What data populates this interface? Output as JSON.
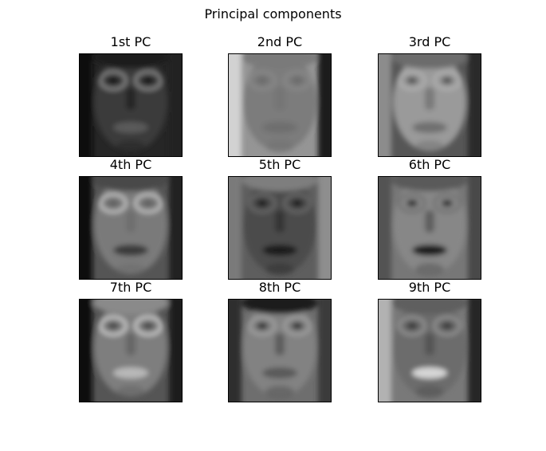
{
  "figure": {
    "title": "Principal components"
  },
  "panels": [
    {
      "title": "1st PC",
      "image": "eigenface-1",
      "skin": "#3a3a3a",
      "bg": "#262626",
      "feature": "#151515",
      "hair": "#1c1c1c",
      "glasses": "#8a8a8a",
      "mouth": "#5a5a5a",
      "left_edge": "#0d0d0d",
      "right_edge": "#202020"
    },
    {
      "title": "2nd PC",
      "image": "eigenface-2",
      "skin": "#7c7c7c",
      "bg": "#959595",
      "feature": "#6a6a6a",
      "hair": "#7a7a7a",
      "glasses": "#8a8a8a",
      "mouth": "#6e6e6e",
      "left_edge": "#d2d2d2",
      "right_edge": "#1a1a1a"
    },
    {
      "title": "3rd PC",
      "image": "eigenface-3",
      "skin": "#9a9a9a",
      "bg": "#565656",
      "feature": "#525252",
      "hair": "#6c6c6c",
      "glasses": "#b2b2b2",
      "mouth": "#707070",
      "left_edge": "#8c8c8c",
      "right_edge": "#2a2a2a"
    },
    {
      "title": "4th PC",
      "image": "eigenface-4",
      "skin": "#7a7a7a",
      "bg": "#555555",
      "feature": "#606060",
      "hair": "#4a4a4a",
      "glasses": "#c8c8c8",
      "mouth": "#3a3a3a",
      "left_edge": "#111111",
      "right_edge": "#222222"
    },
    {
      "title": "5th PC",
      "image": "eigenface-5",
      "skin": "#4c4c4c",
      "bg": "#5e5e5e",
      "feature": "#1c1c1c",
      "hair": "#7e7e7e",
      "glasses": "#6a6a6a",
      "mouth": "#1a1a1a",
      "left_edge": "#7a7a7a",
      "right_edge": "#8e8e8e"
    },
    {
      "title": "6th PC",
      "image": "eigenface-6",
      "skin": "#878787",
      "bg": "#777777",
      "feature": "#2e2e2e",
      "hair": "#5a5a5a",
      "glasses": "#6e6e6e",
      "mouth": "#1f1f1f",
      "left_edge": "#525252",
      "right_edge": "#484848"
    },
    {
      "title": "7th PC",
      "image": "eigenface-7",
      "skin": "#7e7e7e",
      "bg": "#555555",
      "feature": "#4a4a4a",
      "hair": "#8a8a8a",
      "glasses": "#d0d0d0",
      "mouth": "#b8b8b8",
      "left_edge": "#0e0e0e",
      "right_edge": "#1e1e1e"
    },
    {
      "title": "8th PC",
      "image": "eigenface-8",
      "skin": "#828282",
      "bg": "#6e6e6e",
      "feature": "#303030",
      "hair": "#1e1e1e",
      "glasses": "#a2a2a2",
      "mouth": "#5a5a5a",
      "left_edge": "#2e2e2e",
      "right_edge": "#3a3a3a"
    },
    {
      "title": "9th PC",
      "image": "eigenface-9",
      "skin": "#6c6c6c",
      "bg": "#797979",
      "feature": "#3a3a3a",
      "hair": "#5e5e5e",
      "glasses": "#959595",
      "mouth": "#d6d6d6",
      "left_edge": "#b2b2b2",
      "right_edge": "#262626"
    }
  ]
}
